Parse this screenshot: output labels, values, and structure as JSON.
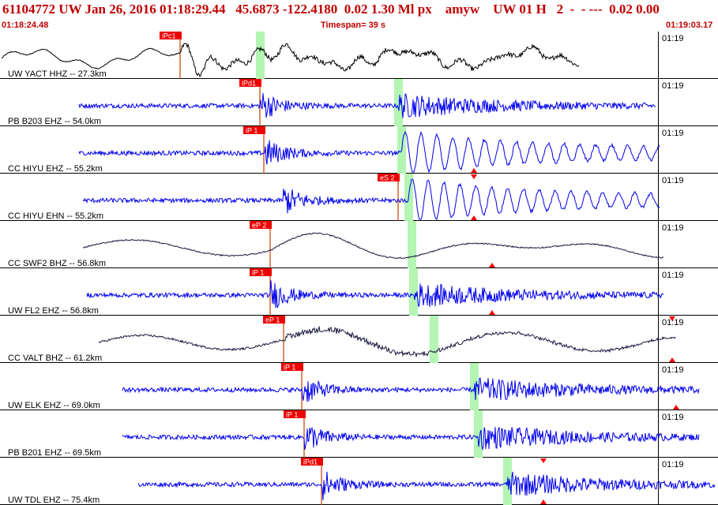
{
  "header": {
    "title": "61104772 UW Jan 26, 2016 01:18:29.44   45.6873 -122.4180  0.02 1.30 Ml px    amyw    UW 01 H   2  -  - ---  0.02 0.00",
    "start_time": "01:18:24.48",
    "timespan": "Timespan=  39 s",
    "end_time": "01:19:03.17"
  },
  "colors": {
    "header_text": "#c00000",
    "blue_trace": "#0000ee",
    "dark_trace": "#1a1a40",
    "black_trace": "#000000",
    "pick_fill": "#ee0000",
    "pick_text": "#ffffff",
    "s_window": "#b4f5b4",
    "triangle": "#ff0000"
  },
  "traces": [
    {
      "label": "UW YACT HHZ -- 27.3km",
      "color": "black",
      "pick": "iPc1",
      "time_label": "01:19",
      "style": "long_period_black",
      "triangles": false
    },
    {
      "label": "PB B203 EHZ -- 54.0km",
      "color": "blue",
      "pick": "iPd1",
      "time_label": "01:19",
      "style": "hf",
      "triangles": false
    },
    {
      "label": "CC HIYU EHZ -- 55.2km",
      "color": "blue",
      "pick": "iP 1",
      "time_label": "01:19",
      "style": "hf_coda",
      "triangles": "bottom"
    },
    {
      "label": "CC HIYU EHN -- 55.2km",
      "color": "blue",
      "pick": "eS 2",
      "time_label": "01:19",
      "style": "hf_coda",
      "triangles": "both"
    },
    {
      "label": "CC SWF2 BHZ -- 56.8km",
      "color": "dark",
      "pick": "eP 2",
      "time_label": "01:19",
      "style": "long_period",
      "triangles": "bottom"
    },
    {
      "label": "UW FL2 EHZ -- 56.8km",
      "color": "blue",
      "pick": "iP 1",
      "time_label": "01:19",
      "style": "hf",
      "triangles": "bottom"
    },
    {
      "label": "CC VALT BHZ -- 61.2km",
      "color": "dark",
      "pick": "eP 1",
      "time_label": "01:19",
      "style": "mixed",
      "triangles": "bottom"
    },
    {
      "label": "UW ELK EHZ -- 69.0km",
      "color": "blue",
      "pick": "iP 1",
      "time_label": "01:19",
      "style": "hf",
      "triangles": "bottom"
    },
    {
      "label": "PB B201 EHZ -- 69.5km",
      "color": "blue",
      "pick": "iP 1",
      "time_label": "01:19",
      "style": "hf",
      "triangles": false
    },
    {
      "label": "UW TDL EHZ -- 75.4km",
      "color": "blue",
      "pick": "iPd1",
      "time_label": "01:19",
      "style": "hf",
      "triangles": "bottom"
    }
  ]
}
